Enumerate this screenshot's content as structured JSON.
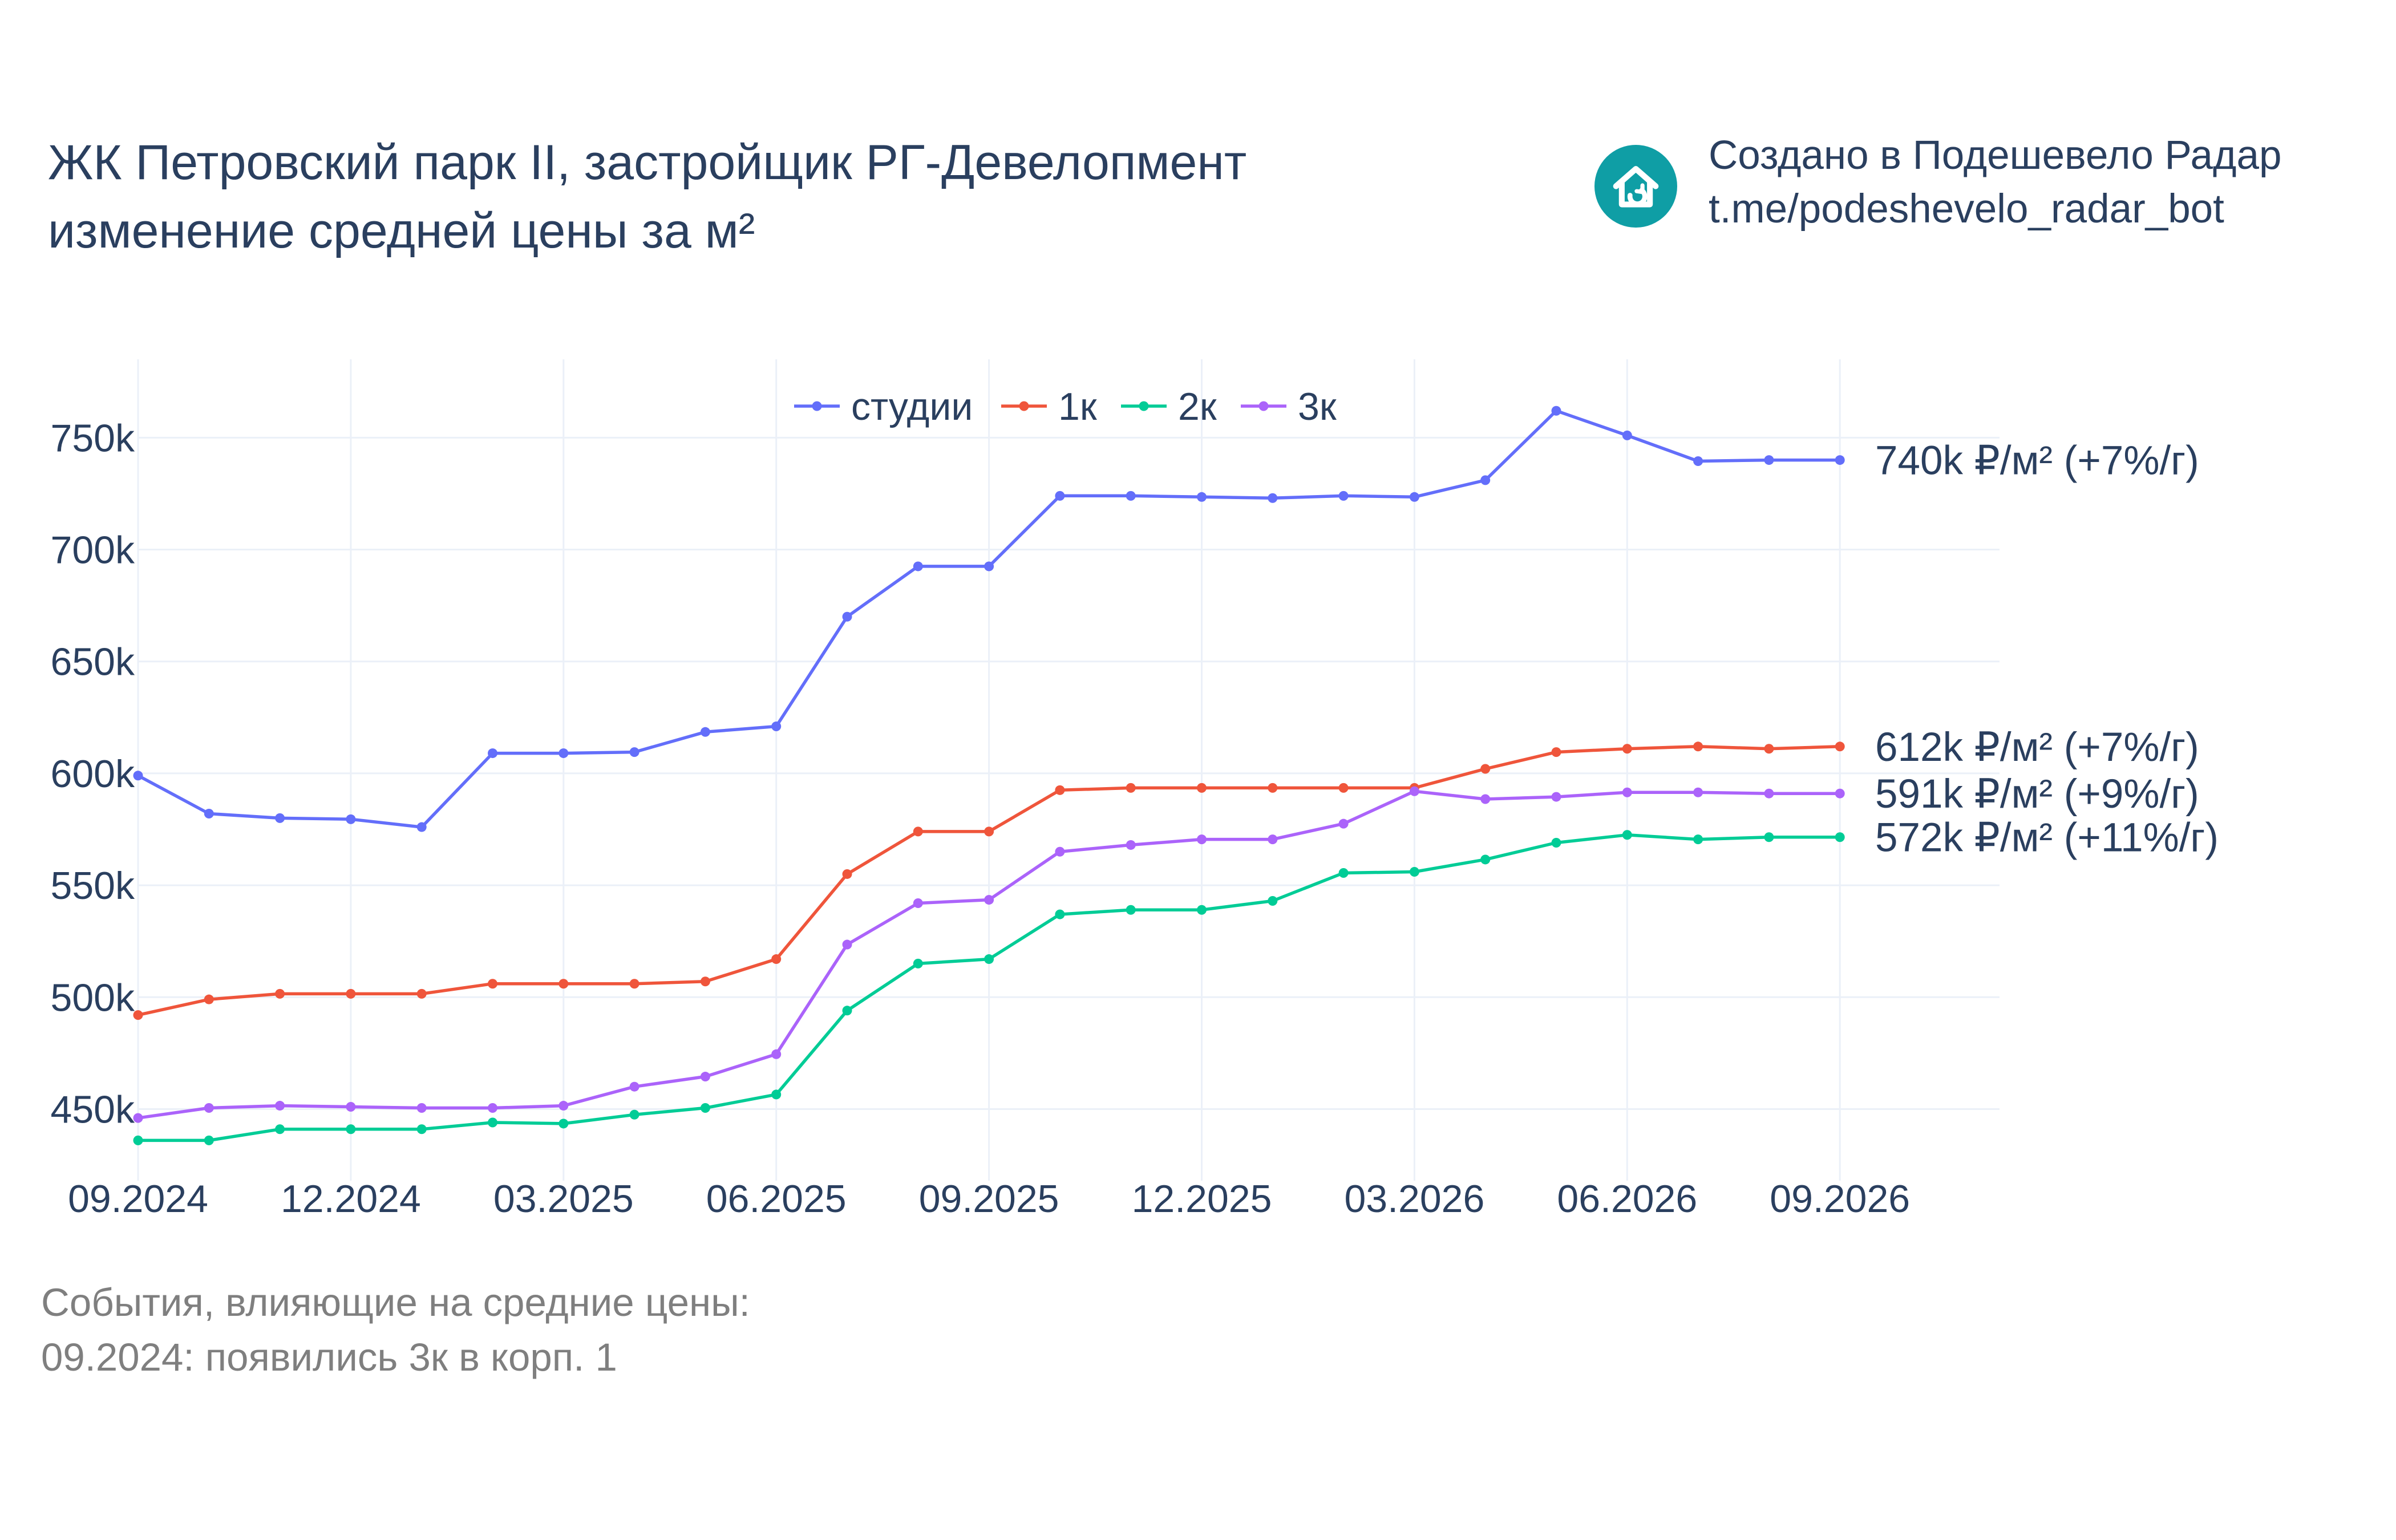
{
  "header": {
    "title_line1": "ЖК Петровский парк II, застройщик РГ-Девелопмент",
    "title_line2": "изменение средней цены за м²",
    "credit_line1": "Создано в Подешевело Радар",
    "credit_line2": "t.me/podeshevelo_radar_bot",
    "credit_icon": "house-icon",
    "credit_icon_color": "#0f9ea5"
  },
  "notes": {
    "heading": "События, влияющие на средние цены:",
    "items": [
      "09.2024: появились 3к в корп. 1"
    ]
  },
  "chart_data": {
    "type": "line",
    "title": "изменение средней цены за м²",
    "x": [
      "09.2024",
      "10.2024",
      "11.2024",
      "12.2024",
      "01.2025",
      "02.2025",
      "03.2025",
      "04.2025",
      "05.2025",
      "06.2025",
      "07.2025",
      "08.2025",
      "09.2025",
      "10.2025",
      "11.2025",
      "12.2025",
      "01.2026",
      "02.2026",
      "03.2026",
      "04.2026",
      "05.2026",
      "06.2026",
      "07.2026",
      "08.2026",
      "09.2026"
    ],
    "x_tick_labels": [
      "09.2024",
      "12.2024",
      "03.2025",
      "06.2025",
      "09.2025",
      "12.2025",
      "03.2026",
      "06.2026",
      "09.2026"
    ],
    "y_tick_values": [
      450000,
      500000,
      550000,
      600000,
      650000,
      700000,
      750000
    ],
    "y_tick_labels": [
      "450k",
      "500k",
      "550k",
      "600k",
      "650k",
      "700k",
      "750k"
    ],
    "ylim": [
      418000,
      785000
    ],
    "grid": true,
    "legend_position": "top-center",
    "series": [
      {
        "name": "студии",
        "color": "#636efa",
        "values": [
          599000,
          582000,
          580000,
          579500,
          576000,
          609000,
          609000,
          609500,
          618500,
          621000,
          670000,
          692500,
          692500,
          724000,
          724000,
          723500,
          723000,
          724000,
          723500,
          731000,
          762000,
          751000,
          739500,
          740000,
          740000
        ],
        "end_label": "740k ₽/м² (+7%/г)"
      },
      {
        "name": "1к",
        "color": "#ef553b",
        "values": [
          492000,
          499000,
          501500,
          501500,
          501500,
          506000,
          506000,
          506000,
          507000,
          517000,
          555000,
          574000,
          574000,
          592500,
          593500,
          593500,
          593500,
          593500,
          593500,
          602000,
          609500,
          611000,
          612000,
          611000,
          612000
        ],
        "end_label": "612k ₽/м² (+7%/г)"
      },
      {
        "name": "2к",
        "color": "#00cc96",
        "values": [
          436000,
          436000,
          441000,
          441000,
          441000,
          444000,
          443500,
          447500,
          450500,
          456500,
          494000,
          515000,
          517000,
          537000,
          539000,
          539000,
          543000,
          555500,
          556000,
          561500,
          569000,
          572500,
          570500,
          571500,
          571500
        ],
        "end_label": "572k ₽/м² (+11%/г)"
      },
      {
        "name": "3к",
        "color": "#ab63fa",
        "values": [
          446000,
          450500,
          451500,
          451000,
          450500,
          450500,
          451500,
          460000,
          464500,
          474500,
          523500,
          542000,
          543500,
          565000,
          568000,
          570500,
          570500,
          577500,
          592000,
          588500,
          589500,
          591500,
          591500,
          591000,
          591000
        ],
        "end_label": "591k ₽/м² (+9%/г)"
      }
    ]
  }
}
